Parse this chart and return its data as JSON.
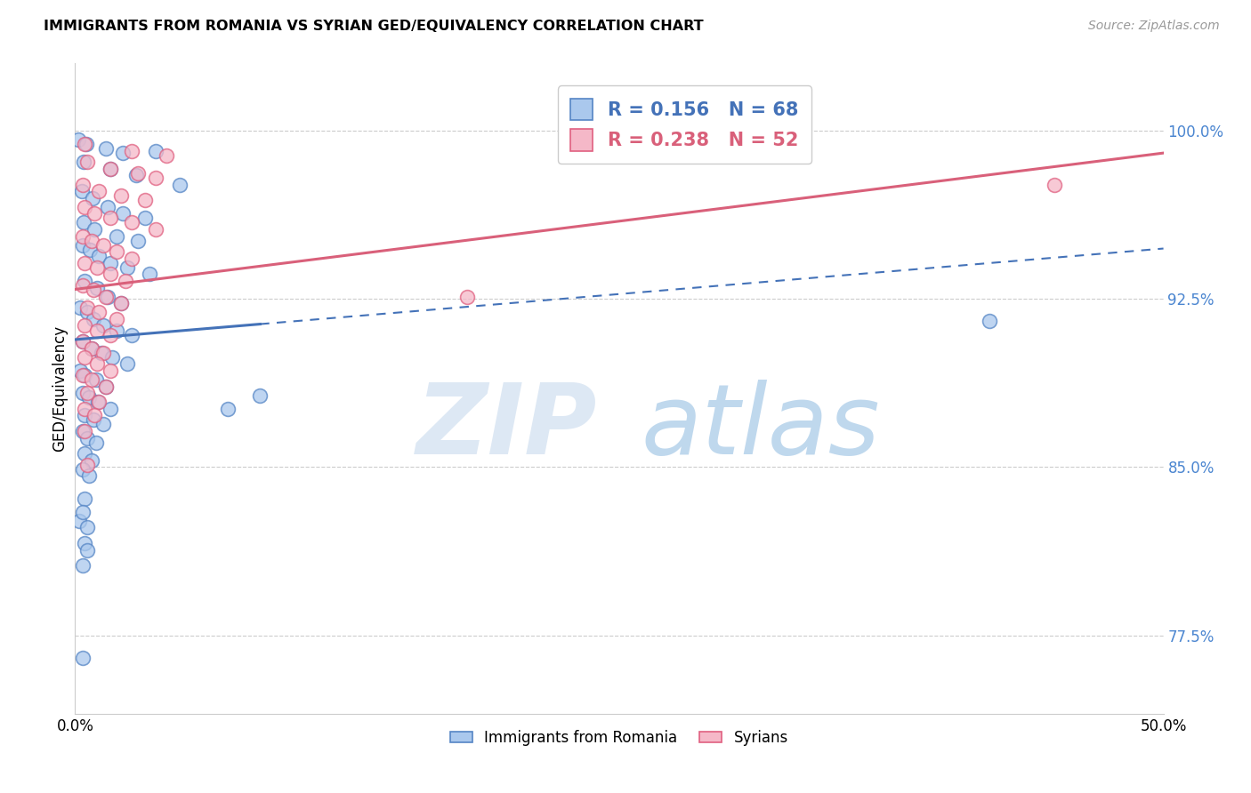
{
  "title": "IMMIGRANTS FROM ROMANIA VS SYRIAN GED/EQUIVALENCY CORRELATION CHART",
  "source": "Source: ZipAtlas.com",
  "ylabel_label": "GED/Equivalency",
  "legend_label1": "Immigrants from Romania",
  "legend_label2": "Syrians",
  "R1": 0.156,
  "N1": 68,
  "R2": 0.238,
  "N2": 52,
  "xlim": [
    0.0,
    50.0
  ],
  "ylim": [
    74.0,
    103.0
  ],
  "yticks": [
    77.5,
    85.0,
    92.5,
    100.0
  ],
  "xticks": [
    0.0,
    50.0
  ],
  "color_blue_fill": "#aac8ed",
  "color_blue_edge": "#5585c5",
  "color_pink_fill": "#f5b8c8",
  "color_pink_edge": "#e06080",
  "color_blue_line": "#4472b8",
  "color_pink_line": "#d9607a",
  "blue_points": [
    [
      0.15,
      99.6
    ],
    [
      0.5,
      99.4
    ],
    [
      1.4,
      99.2
    ],
    [
      2.2,
      99.0
    ],
    [
      3.7,
      99.1
    ],
    [
      0.4,
      98.6
    ],
    [
      1.6,
      98.3
    ],
    [
      2.8,
      98.0
    ],
    [
      4.8,
      97.6
    ],
    [
      0.3,
      97.3
    ],
    [
      0.8,
      97.0
    ],
    [
      1.5,
      96.6
    ],
    [
      2.2,
      96.3
    ],
    [
      3.2,
      96.1
    ],
    [
      0.4,
      95.9
    ],
    [
      0.9,
      95.6
    ],
    [
      1.9,
      95.3
    ],
    [
      2.9,
      95.1
    ],
    [
      0.35,
      94.9
    ],
    [
      0.7,
      94.7
    ],
    [
      1.1,
      94.4
    ],
    [
      1.6,
      94.1
    ],
    [
      2.4,
      93.9
    ],
    [
      3.4,
      93.6
    ],
    [
      0.45,
      93.3
    ],
    [
      1.0,
      93.0
    ],
    [
      1.5,
      92.6
    ],
    [
      2.1,
      92.3
    ],
    [
      0.25,
      92.1
    ],
    [
      0.55,
      91.9
    ],
    [
      0.85,
      91.6
    ],
    [
      1.3,
      91.3
    ],
    [
      1.9,
      91.1
    ],
    [
      2.6,
      90.9
    ],
    [
      0.35,
      90.6
    ],
    [
      0.75,
      90.3
    ],
    [
      1.2,
      90.1
    ],
    [
      1.7,
      89.9
    ],
    [
      2.4,
      89.6
    ],
    [
      0.25,
      89.3
    ],
    [
      0.45,
      89.1
    ],
    [
      0.95,
      88.9
    ],
    [
      1.4,
      88.6
    ],
    [
      0.35,
      88.3
    ],
    [
      0.65,
      88.1
    ],
    [
      1.05,
      87.9
    ],
    [
      1.6,
      87.6
    ],
    [
      0.45,
      87.3
    ],
    [
      0.85,
      87.1
    ],
    [
      1.3,
      86.9
    ],
    [
      0.35,
      86.6
    ],
    [
      0.55,
      86.3
    ],
    [
      0.95,
      86.1
    ],
    [
      0.45,
      85.6
    ],
    [
      0.75,
      85.3
    ],
    [
      0.35,
      84.9
    ],
    [
      0.65,
      84.6
    ],
    [
      0.45,
      83.6
    ],
    [
      0.2,
      82.6
    ],
    [
      0.55,
      82.3
    ],
    [
      0.45,
      81.6
    ],
    [
      0.55,
      81.3
    ],
    [
      7.0,
      87.6
    ],
    [
      0.35,
      83.0
    ],
    [
      0.35,
      80.6
    ],
    [
      42.0,
      91.5
    ],
    [
      8.5,
      88.2
    ],
    [
      0.35,
      76.5
    ]
  ],
  "pink_points": [
    [
      0.45,
      99.4
    ],
    [
      2.6,
      99.1
    ],
    [
      4.2,
      98.9
    ],
    [
      0.55,
      98.6
    ],
    [
      1.6,
      98.3
    ],
    [
      2.9,
      98.1
    ],
    [
      3.7,
      97.9
    ],
    [
      0.35,
      97.6
    ],
    [
      1.1,
      97.3
    ],
    [
      2.1,
      97.1
    ],
    [
      3.2,
      96.9
    ],
    [
      0.45,
      96.6
    ],
    [
      0.9,
      96.3
    ],
    [
      1.6,
      96.1
    ],
    [
      2.6,
      95.9
    ],
    [
      3.7,
      95.6
    ],
    [
      0.35,
      95.3
    ],
    [
      0.75,
      95.1
    ],
    [
      1.3,
      94.9
    ],
    [
      1.9,
      94.6
    ],
    [
      2.6,
      94.3
    ],
    [
      0.45,
      94.1
    ],
    [
      1.0,
      93.9
    ],
    [
      1.6,
      93.6
    ],
    [
      2.3,
      93.3
    ],
    [
      0.35,
      93.1
    ],
    [
      0.85,
      92.9
    ],
    [
      1.4,
      92.6
    ],
    [
      2.1,
      92.3
    ],
    [
      0.55,
      92.1
    ],
    [
      1.1,
      91.9
    ],
    [
      1.9,
      91.6
    ],
    [
      0.45,
      91.3
    ],
    [
      1.0,
      91.1
    ],
    [
      1.6,
      90.9
    ],
    [
      0.35,
      90.6
    ],
    [
      0.75,
      90.3
    ],
    [
      1.3,
      90.1
    ],
    [
      0.45,
      89.9
    ],
    [
      1.0,
      89.6
    ],
    [
      1.6,
      89.3
    ],
    [
      0.35,
      89.1
    ],
    [
      0.75,
      88.9
    ],
    [
      1.4,
      88.6
    ],
    [
      0.55,
      88.3
    ],
    [
      1.1,
      87.9
    ],
    [
      0.45,
      87.6
    ],
    [
      0.9,
      87.3
    ],
    [
      0.45,
      86.6
    ],
    [
      0.55,
      85.1
    ],
    [
      18.0,
      92.6
    ],
    [
      45.0,
      97.6
    ]
  ]
}
